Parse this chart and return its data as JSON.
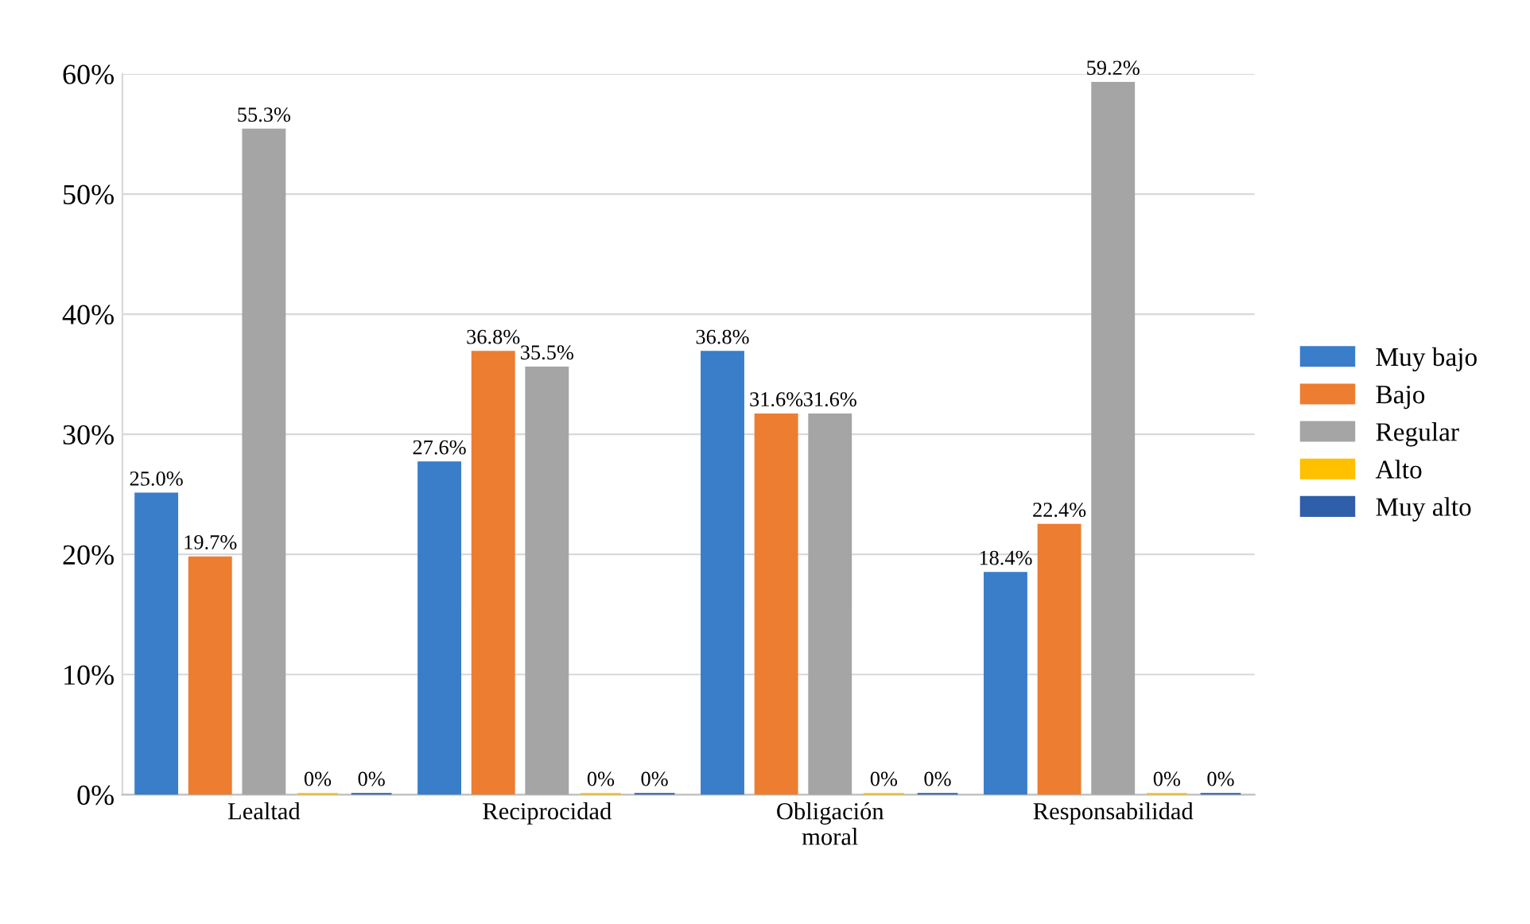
{
  "chart_data": {
    "type": "bar",
    "categories": [
      "Lealtad",
      "Reciprocidad",
      "Obligación\nmoral",
      "Responsabilidad"
    ],
    "series": [
      {
        "name": "Muy bajo",
        "color": "#3a7dc9",
        "values": [
          25.0,
          27.6,
          36.8,
          18.4
        ],
        "value_labels": [
          "25.0%",
          "27.6%",
          "36.8%",
          "18.4%"
        ]
      },
      {
        "name": "Bajo",
        "color": "#ed7d31",
        "values": [
          19.7,
          36.8,
          31.6,
          22.4
        ],
        "value_labels": [
          "19.7%",
          "36.8%",
          "31.6%",
          "22.4%"
        ]
      },
      {
        "name": "Regular",
        "color": "#a5a5a5",
        "values": [
          55.3,
          35.5,
          31.6,
          59.2
        ],
        "value_labels": [
          "55.3%",
          "35.5%",
          "31.6%",
          "59.2%"
        ]
      },
      {
        "name": "Alto",
        "color": "#ffc000",
        "values": [
          0,
          0,
          0,
          0
        ],
        "value_labels": [
          "0%",
          "0%",
          "0%",
          "0%"
        ]
      },
      {
        "name": "Muy alto",
        "color": "#2e5fa8",
        "values": [
          0,
          0,
          0,
          0
        ],
        "value_labels": [
          "0%",
          "0%",
          "0%",
          "0%"
        ]
      }
    ],
    "ylim": [
      0,
      60
    ],
    "yticks": [
      {
        "value": 0,
        "label": "0%"
      },
      {
        "value": 10,
        "label": "10%"
      },
      {
        "value": 20,
        "label": "20%"
      },
      {
        "value": 30,
        "label": "30%"
      },
      {
        "value": 40,
        "label": "40%"
      },
      {
        "value": 50,
        "label": "50%"
      },
      {
        "value": 60,
        "label": "60%"
      }
    ],
    "grid": "y",
    "legend": "right"
  }
}
